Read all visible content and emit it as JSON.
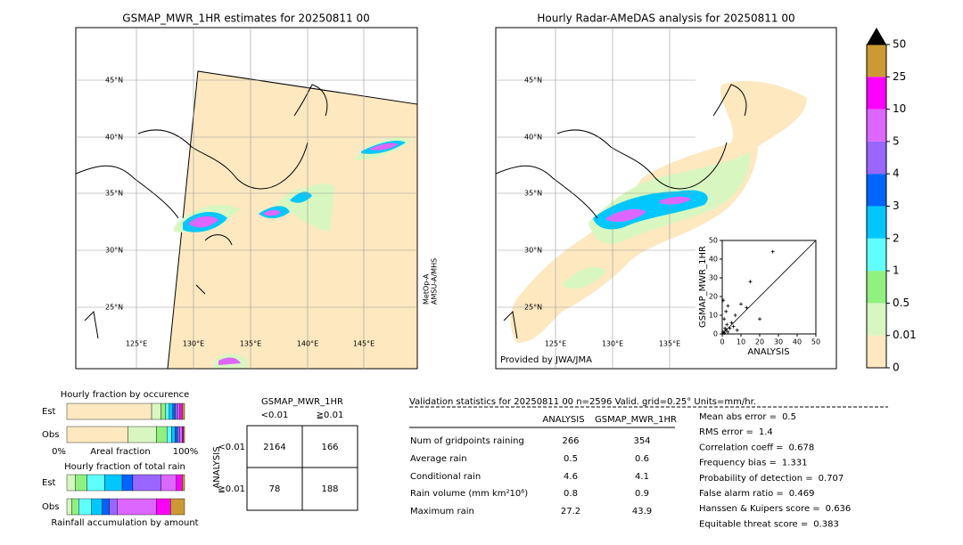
{
  "left_map": {
    "title": "GSMAP_MWR_1HR estimates for 20250811 00",
    "lat_labels": [
      "45°N",
      "40°N",
      "35°N",
      "30°N",
      "25°N"
    ],
    "lon_labels": [
      "125°E",
      "130°E",
      "135°E",
      "140°E",
      "145°E"
    ],
    "satellite_label": [
      "MetOp-A",
      "AMSU-A/MHS"
    ]
  },
  "right_map": {
    "title": "Hourly Radar-AMeDAS analysis for 20250811 00",
    "lat_labels": [
      "45°N",
      "40°N",
      "35°N",
      "30°N",
      "25°N"
    ],
    "lon_labels": [
      "125°E",
      "130°E",
      "135°E"
    ],
    "credit": "Provided by JWA/JMA"
  },
  "colorbar": {
    "ticks": [
      0,
      0.01,
      0.5,
      1,
      2,
      3,
      4,
      5,
      10,
      25,
      50
    ],
    "colors": [
      "#fde8c0",
      "#d8f7c0",
      "#90f080",
      "#60ffff",
      "#00c8ff",
      "#0064ff",
      "#9966ff",
      "#dd66ff",
      "#ff00ff",
      "#cc9933"
    ],
    "extend_color": "#000000"
  },
  "chart_data": {
    "type": "scatter",
    "xlabel": "ANALYSIS",
    "ylabel": "GSMAP_MWR_1HR",
    "xlim": [
      0,
      50
    ],
    "ylim": [
      0,
      50
    ],
    "xticks": [
      0,
      10,
      20,
      30,
      40,
      50
    ],
    "yticks": [
      0,
      10,
      20,
      30,
      40,
      50
    ],
    "x": [
      0.5,
      1,
      1.5,
      2,
      2.5,
      3,
      1,
      2,
      4,
      5,
      3,
      6,
      0.5,
      7,
      8,
      10,
      13,
      20,
      15,
      27
    ],
    "y": [
      1,
      0.5,
      3,
      2,
      5,
      1,
      8,
      12,
      3,
      6,
      15,
      4,
      18,
      10,
      2,
      16,
      14,
      8,
      28,
      44
    ]
  },
  "occurrence": {
    "title": "Hourly fraction by occurence",
    "rows": [
      "Est",
      "Obs"
    ],
    "axis_labels": [
      "0%",
      "Areal fraction",
      "100%"
    ],
    "est": [
      72,
      8,
      4,
      3,
      3,
      2,
      2,
      2,
      2,
      2
    ],
    "obs": [
      52,
      24,
      9,
      4,
      3,
      2,
      2,
      2,
      1,
      1
    ]
  },
  "total_rain": {
    "title": "Hourly fraction of total rain",
    "rows": [
      "Est",
      "Obs"
    ],
    "footer": "Rainfall accumulation by amount",
    "est": [
      0,
      7,
      10,
      15,
      15,
      9,
      24,
      13,
      5,
      2
    ],
    "obs": [
      0,
      4,
      6,
      11,
      9,
      6,
      7,
      33,
      12,
      12
    ]
  },
  "contingency": {
    "title": "GSMAP_MWR_1HR",
    "columns": [
      "<0.01",
      "≧0.01"
    ],
    "row_axis": "ANALYSIS",
    "rows": [
      "<0.01",
      "≧0.01"
    ],
    "cells": [
      [
        2164,
        166
      ],
      [
        78,
        188
      ]
    ]
  },
  "validation": {
    "header": "Validation statistics for 20250811 00  n=2596 Valid. grid=0.25° Units=mm/hr.",
    "columns": [
      "ANALYSIS",
      "GSMAP_MWR_1HR"
    ],
    "rows": [
      [
        "Num of gridpoints raining",
        266,
        354
      ],
      [
        "Average rain",
        0.5,
        0.6
      ],
      [
        "Conditional rain",
        4.6,
        4.1
      ],
      [
        "Rain volume (mm km²10⁶)",
        0.8,
        0.9
      ],
      [
        "Maximum rain",
        27.2,
        43.9
      ]
    ],
    "scores": [
      {
        "label": "Mean abs error =",
        "value": 0.5
      },
      {
        "label": "RMS error =",
        "value": 1.4
      },
      {
        "label": "Correlation coeff =",
        "value": 0.678
      },
      {
        "label": "Frequency bias =",
        "value": 1.331
      },
      {
        "label": "Probability of detection =",
        "value": 0.707
      },
      {
        "label": "False alarm ratio =",
        "value": 0.469
      },
      {
        "label": "Hanssen & Kuipers score =",
        "value": 0.636
      },
      {
        "label": "Equitable threat score =",
        "value": 0.383
      }
    ]
  }
}
